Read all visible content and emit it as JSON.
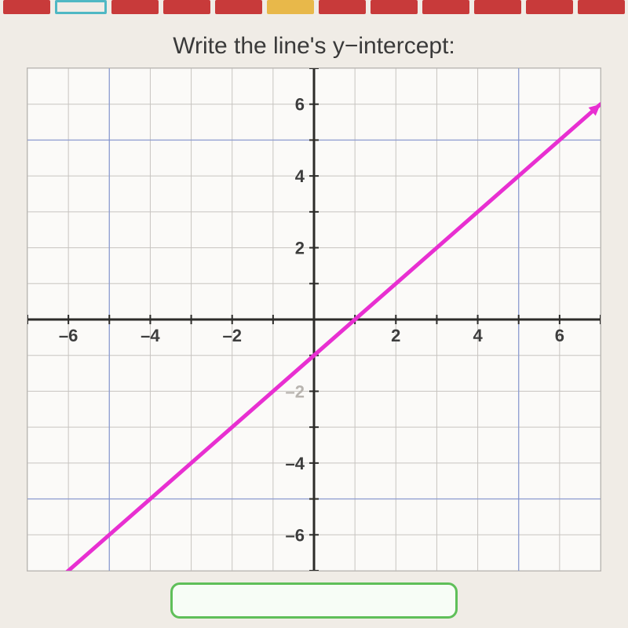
{
  "topbar": {
    "segments": [
      {
        "color": "#c83a3a"
      },
      {
        "color": "#4fb8c4",
        "outline": true
      },
      {
        "color": "#c83a3a"
      },
      {
        "color": "#c83a3a"
      },
      {
        "color": "#c83a3a"
      },
      {
        "color": "#e8b84a"
      },
      {
        "color": "#c83a3a"
      },
      {
        "color": "#c83a3a"
      },
      {
        "color": "#c83a3a"
      },
      {
        "color": "#c83a3a"
      },
      {
        "color": "#c83a3a"
      },
      {
        "color": "#c83a3a"
      }
    ]
  },
  "prompt": "Write the line's y−intercept:",
  "chart": {
    "type": "line",
    "xlim": [
      -7,
      7
    ],
    "ylim": [
      -7,
      7
    ],
    "tick_step": 1,
    "major_step": 5,
    "x_ticks_labeled": [
      -6,
      -4,
      -2,
      2,
      4,
      6
    ],
    "y_ticks_labeled": [
      6,
      4,
      2,
      -2,
      -4,
      -6
    ],
    "tick_fontsize": 22,
    "tick_color": "#3d3d3d",
    "faded_tick_color": "#b8b4af",
    "faded_ticks_y": [
      -2
    ],
    "background_color": "#fbfaf8",
    "minor_grid_color": "#c7c4c0",
    "major_grid_color": "#7a8fd6",
    "axis_color": "#2d2c2a",
    "axis_width": 3,
    "minor_grid_width": 1,
    "major_grid_width": 1.4,
    "line": {
      "points": [
        [
          -6.8,
          -7.8
        ],
        [
          7,
          6
        ]
      ],
      "color": "#e82fd1",
      "width": 5,
      "arrows": true,
      "arrow_size": 16
    }
  },
  "answer_box": {
    "border_color": "#5fbf59",
    "background": "#f7fdf6"
  }
}
